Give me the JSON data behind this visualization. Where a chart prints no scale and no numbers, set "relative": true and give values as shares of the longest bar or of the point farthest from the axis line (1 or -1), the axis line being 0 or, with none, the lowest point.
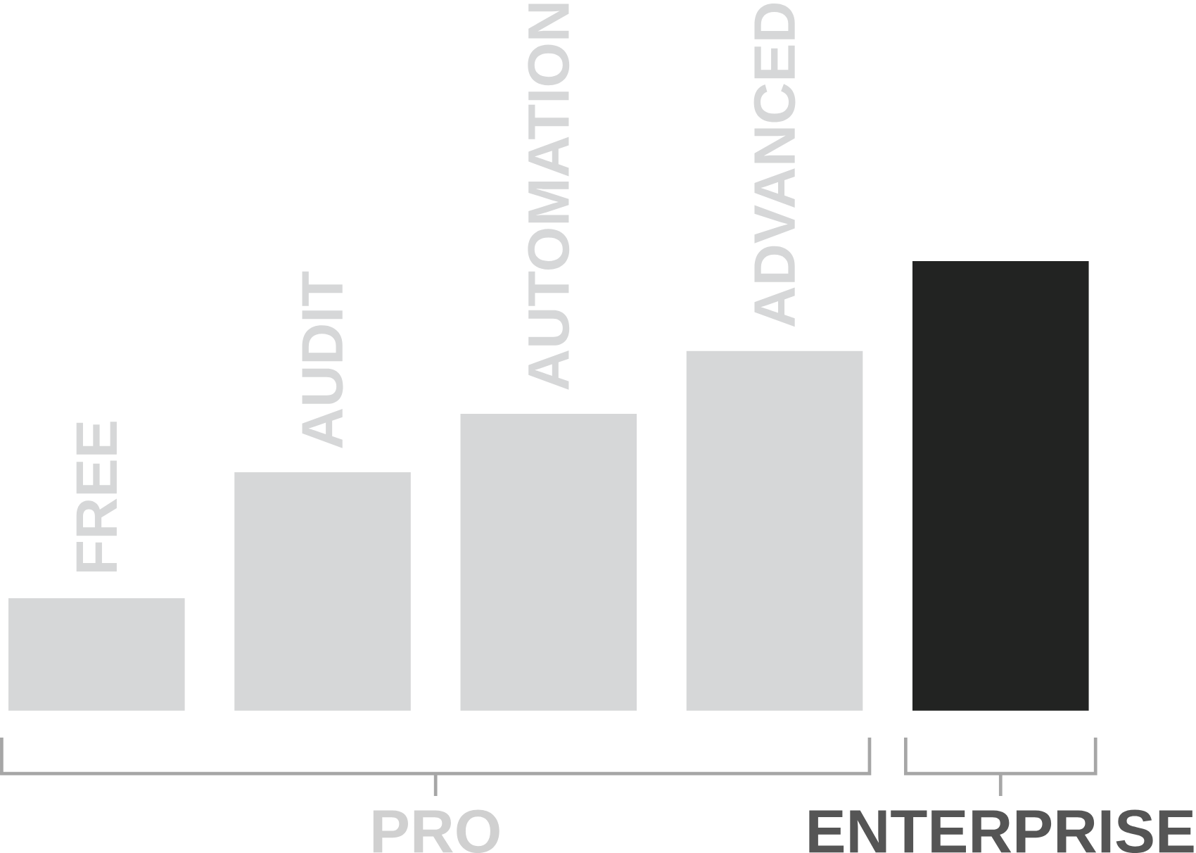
{
  "chart_data": {
    "type": "bar",
    "relative": true,
    "categories": [
      "FREE",
      "AUDIT",
      "AUTOMATION",
      "ADVANCED",
      null
    ],
    "values": [
      0.25,
      0.53,
      0.66,
      0.8,
      1
    ],
    "colors": [
      "#d6d7d8",
      "#d6d7d8",
      "#d6d7d8",
      "#d6d7d8",
      "#222322"
    ],
    "annotations": [
      "PRO",
      "ENTERPRISE"
    ]
  }
}
